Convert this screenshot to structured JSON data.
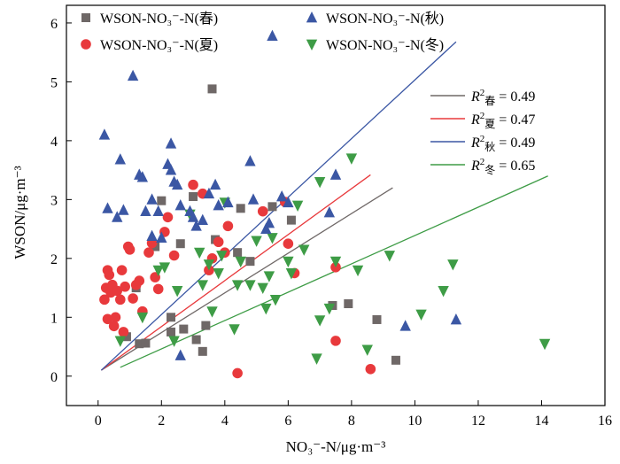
{
  "chart_data": {
    "type": "scatter",
    "xlabel": "NO₃⁻-N/μg·m⁻³",
    "ylabel": "WSON/μg·m⁻³",
    "xlim": [
      -1,
      16
    ],
    "ylim": [
      -0.5,
      6.3
    ],
    "xticks": [
      0,
      2,
      4,
      6,
      8,
      10,
      12,
      14,
      16
    ],
    "yticks": [
      0,
      1,
      2,
      3,
      4,
      5,
      6
    ],
    "grid": false,
    "legend_position": "top",
    "series": [
      {
        "name": "WSON-NO₃⁻-N(春)",
        "marker": "square",
        "color": "#6f6867",
        "points": [
          [
            0.9,
            0.67
          ],
          [
            1.3,
            0.55
          ],
          [
            1.5,
            0.56
          ],
          [
            2.3,
            1.0
          ],
          [
            2.3,
            0.75
          ],
          [
            2.7,
            0.8
          ],
          [
            3.1,
            0.62
          ],
          [
            3.3,
            0.42
          ],
          [
            3.4,
            0.86
          ],
          [
            1.2,
            1.5
          ],
          [
            1.8,
            2.2
          ],
          [
            2.0,
            2.98
          ],
          [
            2.6,
            2.25
          ],
          [
            3.0,
            3.05
          ],
          [
            3.6,
            4.88
          ],
          [
            3.7,
            2.32
          ],
          [
            4.4,
            2.1
          ],
          [
            4.5,
            2.85
          ],
          [
            4.8,
            1.95
          ],
          [
            5.5,
            2.88
          ],
          [
            6.1,
            2.65
          ],
          [
            7.4,
            1.2
          ],
          [
            7.9,
            1.23
          ],
          [
            8.8,
            0.96
          ],
          [
            9.4,
            0.27
          ]
        ]
      },
      {
        "name": "WSON-NO₃⁻-N(夏)",
        "marker": "circle",
        "color": "#e8393c",
        "points": [
          [
            0.2,
            1.3
          ],
          [
            0.25,
            1.5
          ],
          [
            0.3,
            1.8
          ],
          [
            0.35,
            1.72
          ],
          [
            0.3,
            0.97
          ],
          [
            0.4,
            1.42
          ],
          [
            0.45,
            1.55
          ],
          [
            0.5,
            0.85
          ],
          [
            0.55,
            1.0
          ],
          [
            0.6,
            1.45
          ],
          [
            0.7,
            1.3
          ],
          [
            0.75,
            1.8
          ],
          [
            0.8,
            0.75
          ],
          [
            0.85,
            1.52
          ],
          [
            0.95,
            2.2
          ],
          [
            1.0,
            2.15
          ],
          [
            1.1,
            1.32
          ],
          [
            1.2,
            1.55
          ],
          [
            1.3,
            1.62
          ],
          [
            1.4,
            1.1
          ],
          [
            1.6,
            2.1
          ],
          [
            1.7,
            2.26
          ],
          [
            1.8,
            1.68
          ],
          [
            1.9,
            1.48
          ],
          [
            2.1,
            2.45
          ],
          [
            2.2,
            2.7
          ],
          [
            2.4,
            2.05
          ],
          [
            3.0,
            3.25
          ],
          [
            3.3,
            3.1
          ],
          [
            3.5,
            1.8
          ],
          [
            3.6,
            2.0
          ],
          [
            3.8,
            2.28
          ],
          [
            4.0,
            2.1
          ],
          [
            4.1,
            2.55
          ],
          [
            4.4,
            0.05
          ],
          [
            5.2,
            2.8
          ],
          [
            5.9,
            2.96
          ],
          [
            6.0,
            2.25
          ],
          [
            6.2,
            1.75
          ],
          [
            7.5,
            1.85
          ],
          [
            7.5,
            0.6
          ],
          [
            8.6,
            0.12
          ]
        ]
      },
      {
        "name": "WSON-NO₃⁻-N(秋)",
        "marker": "triangle-up",
        "color": "#3b57a4",
        "points": [
          [
            0.2,
            4.1
          ],
          [
            0.3,
            2.85
          ],
          [
            0.6,
            2.7
          ],
          [
            0.7,
            3.68
          ],
          [
            0.8,
            2.82
          ],
          [
            1.1,
            5.1
          ],
          [
            1.3,
            3.42
          ],
          [
            1.4,
            3.38
          ],
          [
            1.5,
            2.8
          ],
          [
            1.7,
            3.0
          ],
          [
            1.7,
            2.38
          ],
          [
            1.9,
            2.8
          ],
          [
            2.0,
            2.35
          ],
          [
            2.2,
            3.6
          ],
          [
            2.3,
            3.95
          ],
          [
            2.3,
            3.5
          ],
          [
            2.4,
            3.3
          ],
          [
            2.5,
            3.25
          ],
          [
            2.6,
            2.9
          ],
          [
            2.6,
            0.35
          ],
          [
            2.9,
            2.8
          ],
          [
            3.0,
            2.7
          ],
          [
            3.1,
            2.55
          ],
          [
            3.3,
            2.65
          ],
          [
            3.5,
            3.1
          ],
          [
            3.7,
            3.25
          ],
          [
            3.8,
            2.9
          ],
          [
            4.1,
            2.95
          ],
          [
            4.8,
            3.65
          ],
          [
            4.9,
            3.0
          ],
          [
            5.3,
            2.5
          ],
          [
            5.4,
            2.6
          ],
          [
            5.5,
            5.78
          ],
          [
            5.8,
            3.05
          ],
          [
            6.0,
            2.95
          ],
          [
            7.3,
            2.78
          ],
          [
            7.5,
            3.42
          ],
          [
            9.7,
            0.85
          ],
          [
            11.3,
            0.96
          ]
        ]
      },
      {
        "name": "WSON-NO₃⁻-N(冬)",
        "marker": "triangle-down",
        "color": "#3e9c46",
        "points": [
          [
            0.7,
            0.6
          ],
          [
            1.4,
            1.0
          ],
          [
            1.9,
            1.8
          ],
          [
            2.1,
            1.85
          ],
          [
            2.4,
            0.6
          ],
          [
            2.5,
            1.45
          ],
          [
            2.9,
            2.75
          ],
          [
            3.2,
            2.1
          ],
          [
            3.3,
            1.55
          ],
          [
            3.5,
            1.9
          ],
          [
            3.6,
            1.1
          ],
          [
            3.8,
            1.75
          ],
          [
            3.9,
            2.05
          ],
          [
            4.0,
            2.95
          ],
          [
            4.3,
            0.8
          ],
          [
            4.4,
            1.55
          ],
          [
            4.5,
            1.95
          ],
          [
            4.8,
            1.55
          ],
          [
            5.0,
            2.3
          ],
          [
            5.2,
            1.5
          ],
          [
            5.3,
            1.15
          ],
          [
            5.4,
            1.7
          ],
          [
            5.5,
            2.35
          ],
          [
            5.6,
            1.3
          ],
          [
            6.0,
            1.95
          ],
          [
            6.1,
            1.75
          ],
          [
            6.3,
            2.9
          ],
          [
            6.5,
            2.15
          ],
          [
            6.9,
            0.3
          ],
          [
            7.0,
            3.3
          ],
          [
            7.0,
            0.95
          ],
          [
            7.3,
            1.15
          ],
          [
            7.5,
            1.95
          ],
          [
            8.0,
            3.7
          ],
          [
            8.2,
            1.8
          ],
          [
            8.5,
            0.45
          ],
          [
            9.2,
            2.05
          ],
          [
            10.2,
            1.05
          ],
          [
            10.9,
            1.45
          ],
          [
            11.2,
            1.9
          ],
          [
            14.1,
            0.55
          ]
        ]
      }
    ],
    "fit_lines": [
      {
        "label_main": "R",
        "label_season": "春",
        "value": "= 0.49",
        "color": "#6f6867",
        "x": [
          0.1,
          9.3
        ],
        "y": [
          0.1,
          3.2
        ]
      },
      {
        "label_main": "R",
        "label_season": "夏",
        "value": "= 0.47",
        "color": "#e8393c",
        "x": [
          0.1,
          8.6
        ],
        "y": [
          0.1,
          3.42
        ]
      },
      {
        "label_main": "R",
        "label_season": "秋",
        "value": "= 0.49",
        "color": "#3b57a4",
        "x": [
          0.1,
          11.3
        ],
        "y": [
          0.1,
          5.68
        ]
      },
      {
        "label_main": "R",
        "label_season": "冬",
        "value": "= 0.65",
        "color": "#3e9c46",
        "x": [
          0.7,
          14.2
        ],
        "y": [
          0.15,
          3.4
        ]
      }
    ]
  }
}
